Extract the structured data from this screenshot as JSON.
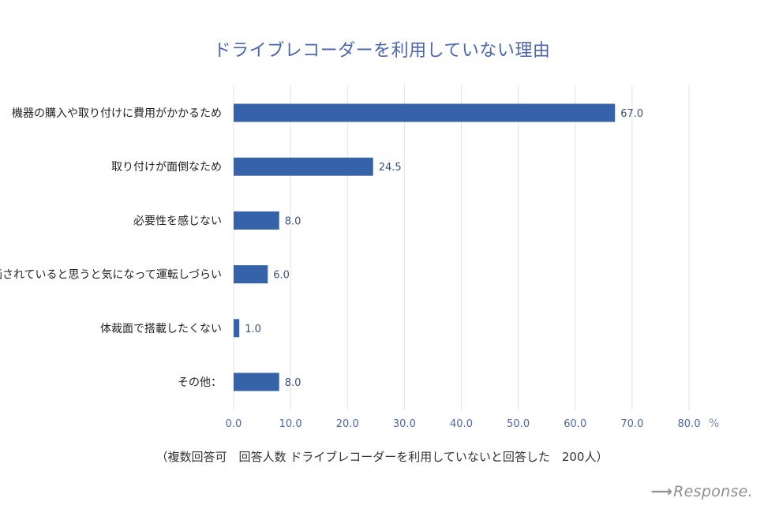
{
  "chart_data": {
    "type": "bar",
    "orientation": "horizontal",
    "title": "ドライブレコーダーを利用していない理由",
    "categories": [
      "機器の購入や取り付けに費用がかかるため",
      "取り付けが面倒なため",
      "必要性を感じない",
      "録画されていると思うと気になって運転しづらい",
      "体裁面で搭載したくない",
      "その他："
    ],
    "values": [
      67.0,
      24.5,
      8.0,
      6.0,
      1.0,
      8.0
    ],
    "value_labels": [
      "67.0",
      "24.5",
      "8.0",
      "6.0",
      "1.0",
      "8.0"
    ],
    "xlim": [
      0,
      80
    ],
    "xticks": [
      "0.0",
      "10.0",
      "20.0",
      "30.0",
      "40.0",
      "50.0",
      "60.0",
      "70.0",
      "80.0"
    ],
    "xunit": "%",
    "bar_color": "#3562a8",
    "grid": true
  },
  "footnote": "（複数回答可　回答人数 ドライブレコーダーを利用していないと回答した　200人）",
  "watermark": "Response."
}
